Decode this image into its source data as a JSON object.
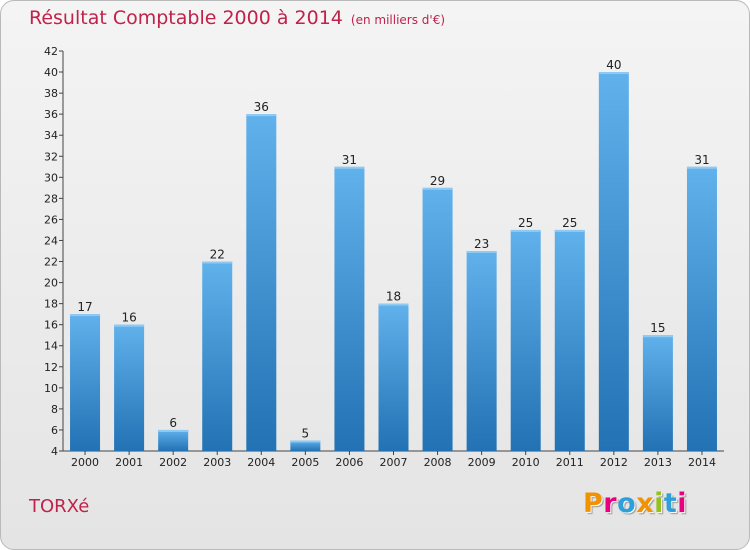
{
  "header": {
    "title": "Résultat Comptable 2000 à 2014",
    "subtitle": "(en milliers d'€)"
  },
  "footer": {
    "place": "TORXé",
    "logo_text": "Proxiti",
    "logo_colors": [
      "#f39200",
      "#e6007e",
      "#2d9fd9",
      "#f39200",
      "#95c11f",
      "#2d9fd9",
      "#e6007e"
    ]
  },
  "colors": {
    "bar_top": "#61b1ec",
    "bar_bottom": "#2272b4",
    "title": "#c0224a"
  },
  "chart_data": {
    "type": "bar",
    "title": "Résultat Comptable 2000 à 2014",
    "categories": [
      "2000",
      "2001",
      "2002",
      "2003",
      "2004",
      "2005",
      "2006",
      "2007",
      "2008",
      "2009",
      "2010",
      "2011",
      "2012",
      "2013",
      "2014"
    ],
    "values": [
      17,
      16,
      6,
      22,
      36,
      5,
      31,
      18,
      29,
      23,
      25,
      25,
      40,
      15,
      31
    ],
    "ylim": [
      4,
      42
    ],
    "yticks": [
      4,
      6,
      8,
      10,
      12,
      14,
      16,
      18,
      20,
      22,
      24,
      26,
      28,
      30,
      32,
      34,
      36,
      38,
      40,
      42
    ],
    "grid": false,
    "legend": "none"
  }
}
